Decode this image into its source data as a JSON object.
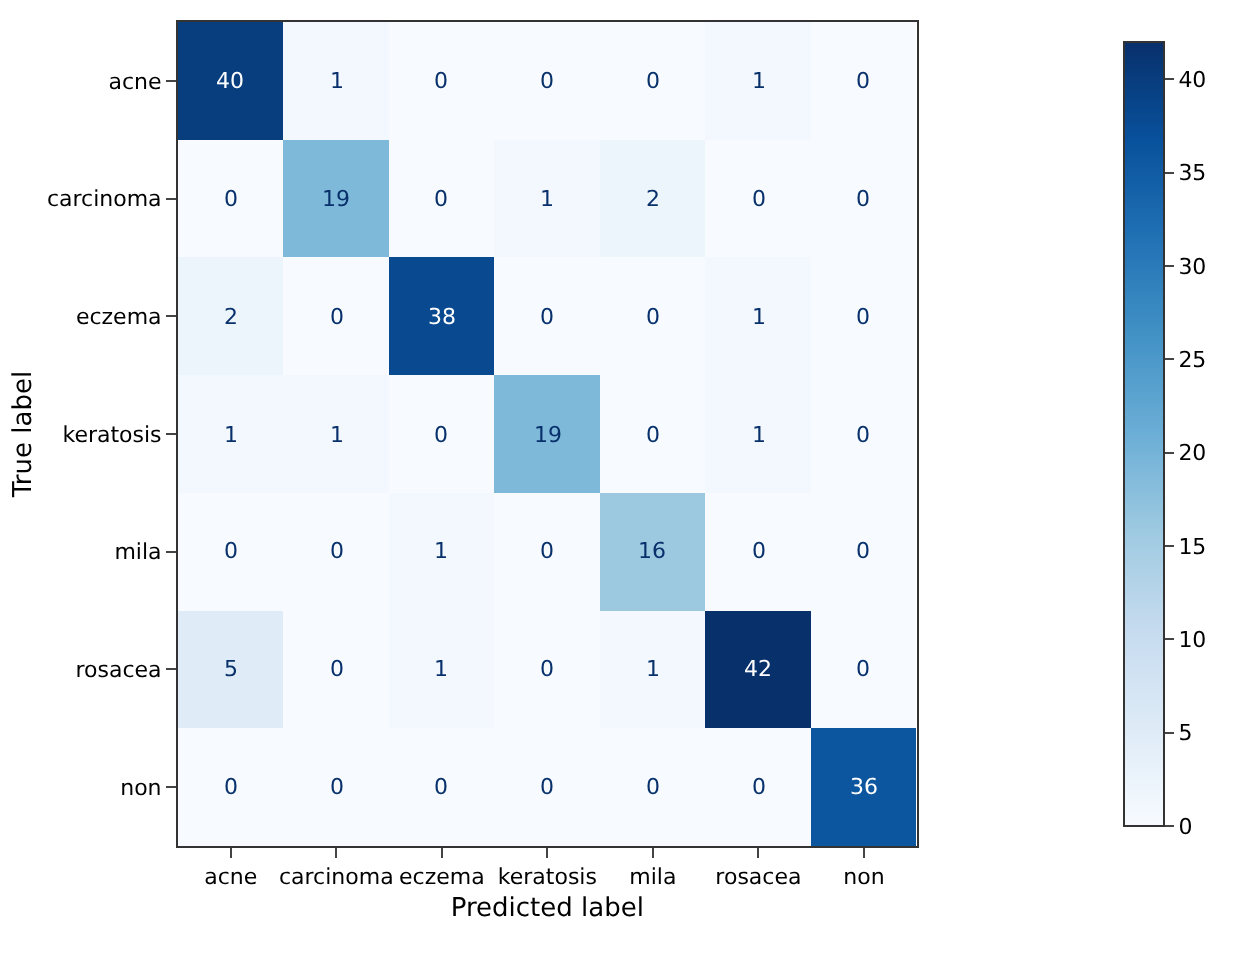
{
  "chart_data": {
    "type": "heatmap",
    "xlabel": "Predicted label",
    "ylabel": "True label",
    "categories": [
      "acne",
      "carcinoma",
      "eczema",
      "keratosis",
      "mila",
      "rosacea",
      "non"
    ],
    "y_categories": [
      "acne",
      "carcinoma",
      "eczema",
      "keratosis",
      "mila",
      "rosacea",
      "non"
    ],
    "cells": [
      [
        40,
        1,
        0,
        0,
        0,
        1,
        0
      ],
      [
        0,
        19,
        0,
        1,
        2,
        0,
        0
      ],
      [
        2,
        0,
        38,
        0,
        0,
        1,
        0
      ],
      [
        1,
        1,
        0,
        19,
        0,
        1,
        0
      ],
      [
        0,
        0,
        1,
        0,
        16,
        0,
        0
      ],
      [
        5,
        0,
        1,
        0,
        1,
        42,
        0
      ],
      [
        0,
        0,
        0,
        0,
        0,
        0,
        36
      ]
    ],
    "data_labels": true,
    "clim": [
      0,
      42
    ],
    "cticks": [
      0,
      5,
      10,
      15,
      20,
      25,
      30,
      35,
      40
    ]
  }
}
